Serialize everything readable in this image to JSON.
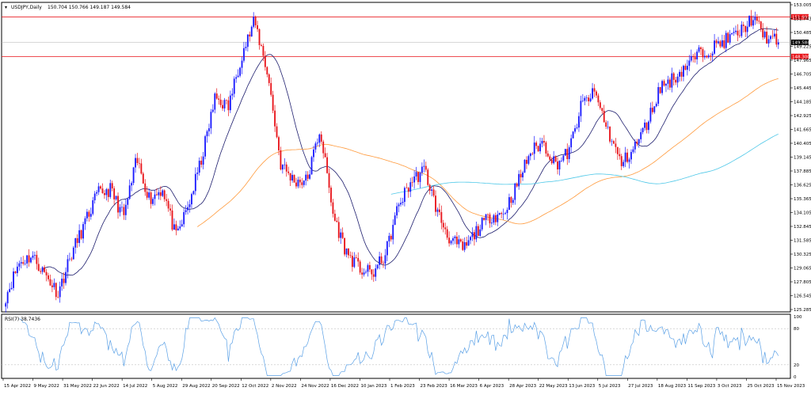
{
  "header": {
    "symbol": "USDJPY,Daily",
    "ohlc": "150.704 150.766 149.187 149.584"
  },
  "colors": {
    "up": "#1a1aff",
    "down": "#e8141a",
    "ma20": "#1e1e6e",
    "ma100": "#ff9a3c",
    "ma200": "#4fc8e8",
    "hline": "#e8141a",
    "rsi": "#5aa0e6",
    "price_tag": "#000000"
  },
  "rsi_panel": {
    "label": "RSI(7) 38.7436",
    "levels": [
      "100",
      "80",
      "20",
      "0"
    ]
  },
  "price_axis": {
    "ticks": [
      "153.005",
      "151.743",
      "150.485",
      "149.225",
      "147.965",
      "146.705",
      "145.445",
      "144.185",
      "142.925",
      "141.665",
      "140.405",
      "139.145",
      "137.885",
      "136.625",
      "135.365",
      "134.105",
      "132.845",
      "131.585",
      "130.325",
      "129.065",
      "127.805",
      "126.545",
      "125.285"
    ],
    "current_price_label": "149.584",
    "hline_labels": [
      "151.902",
      "148.300"
    ]
  },
  "chart_data": {
    "type": "candlestick",
    "title": "USDJPY,Daily",
    "ylim": [
      125.285,
      153.005
    ],
    "dates": [
      "15 Apr 2022",
      "9 May 2022",
      "31 May 2022",
      "22 Jun 2022",
      "14 Jul 2022",
      "5 Aug 2022",
      "29 Aug 2022",
      "20 Sep 2022",
      "12 Oct 2022",
      "2 Nov 2022",
      "24 Nov 2022",
      "16 Dec 2022",
      "10 Jan 2023",
      "1 Feb 2023",
      "23 Feb 2023",
      "16 Mar 2023",
      "6 Apr 2023",
      "28 Apr 2023",
      "22 May 2023",
      "13 Jun 2023",
      "5 Jul 2023",
      "27 Jul 2023",
      "18 Aug 2023",
      "11 Sep 2023",
      "3 Oct 2023",
      "25 Oct 2023",
      "15 Nov 2023"
    ],
    "close_keypoints": [
      126.5,
      129.5,
      130.2,
      128.5,
      126.8,
      130.3,
      133.0,
      135.8,
      136.2,
      133.7,
      138.9,
      135.3,
      136.3,
      131.8,
      134.9,
      139.2,
      144.6,
      143.7,
      148.4,
      151.5,
      146.8,
      138.5,
      137.0,
      137.0,
      141.7,
      133.9,
      130.5,
      129.0,
      128.5,
      130.3,
      134.8,
      137.0,
      138.0,
      134.0,
      131.5,
      130.8,
      132.5,
      133.8,
      134.0,
      136.5,
      139.5,
      140.5,
      138.5,
      139.6,
      144.0,
      145.0,
      141.5,
      138.5,
      140.0,
      142.3,
      145.6,
      146.3,
      147.5,
      148.6,
      149.1,
      149.8,
      150.4,
      151.8,
      150.1,
      149.584
    ],
    "ma_series": [
      {
        "name": "MA fast",
        "color": "#1e1e6e"
      },
      {
        "name": "MA 100",
        "color": "#ff9a3c"
      },
      {
        "name": "MA 200",
        "color": "#4fc8e8"
      }
    ],
    "horizontal_levels": [
      151.902,
      148.3
    ],
    "last_price": 149.584,
    "rsi": {
      "period": 7,
      "last": 38.7436,
      "levels": [
        100,
        80,
        20,
        0
      ]
    }
  }
}
